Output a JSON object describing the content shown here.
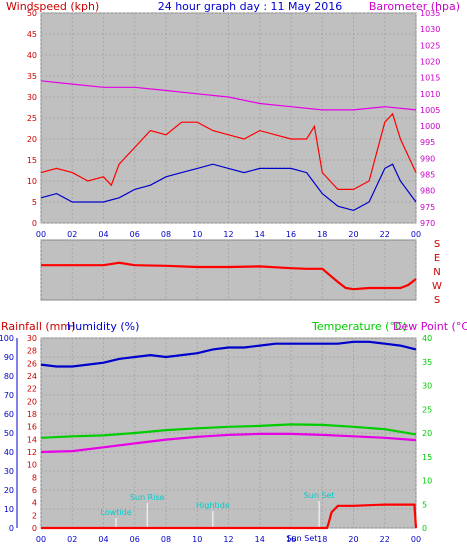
{
  "chart_data": [
    {
      "type": "line",
      "title": "24 hour graph day : 11 May 2016",
      "left_label": "Windspeed (kph)",
      "right_label": "Barometer (hpa)",
      "x_ticks": [
        "00",
        "02",
        "04",
        "06",
        "08",
        "10",
        "12",
        "14",
        "16",
        "18",
        "20",
        "22",
        "00"
      ],
      "xlim": [
        0,
        24
      ],
      "left_ylim": [
        0,
        50
      ],
      "left_ticks": [
        "0",
        "5",
        "10",
        "15",
        "20",
        "25",
        "30",
        "35",
        "40",
        "45",
        "50"
      ],
      "right_ylim": [
        970,
        1035
      ],
      "right_ticks": [
        "970",
        "975",
        "980",
        "985",
        "990",
        "995",
        "1000",
        "1005",
        "1010",
        "1015",
        "1020",
        "1025",
        "1030",
        "1035"
      ],
      "colors": {
        "gust": "#ff0000",
        "wind": "#0000cc",
        "baro": "#e600e6"
      },
      "series": [
        {
          "axis": "left",
          "color": "#ff0000",
          "x": [
            0,
            1,
            2,
            3,
            4,
            4.5,
            5,
            6,
            7,
            8,
            9,
            10,
            11,
            12,
            13,
            14,
            15,
            16,
            17,
            17.5,
            18,
            19,
            20,
            21,
            22,
            22.5,
            23,
            24
          ],
          "values": [
            12,
            13,
            12,
            10,
            11,
            9,
            14,
            18,
            22,
            21,
            24,
            24,
            22,
            21,
            20,
            22,
            21,
            20,
            20,
            23,
            12,
            8,
            8,
            10,
            24,
            26,
            20,
            12
          ]
        },
        {
          "axis": "left",
          "color": "#0000cc",
          "x": [
            0,
            1,
            2,
            3,
            4,
            5,
            6,
            7,
            8,
            9,
            10,
            11,
            12,
            13,
            14,
            15,
            16,
            17,
            18,
            19,
            20,
            21,
            22,
            22.5,
            23,
            24
          ],
          "values": [
            6,
            7,
            5,
            5,
            5,
            6,
            8,
            9,
            11,
            12,
            13,
            14,
            13,
            12,
            13,
            13,
            13,
            12,
            7,
            4,
            3,
            5,
            13,
            14,
            10,
            5
          ]
        },
        {
          "axis": "right",
          "color": "#e600e6",
          "x": [
            0,
            2,
            4,
            6,
            8,
            10,
            12,
            14,
            16,
            18,
            20,
            22,
            24
          ],
          "values": [
            1014,
            1013,
            1012,
            1012,
            1011,
            1010,
            1009,
            1007,
            1006,
            1005,
            1005,
            1006,
            1005
          ]
        }
      ]
    },
    {
      "type": "line",
      "title": "",
      "ylabels": [
        "S",
        "E",
        "N",
        "W",
        "S"
      ],
      "color": "#ff0000",
      "x": [
        0,
        2,
        4,
        5,
        6,
        8,
        10,
        12,
        14,
        16,
        17,
        18,
        19,
        19.5,
        20,
        21,
        22,
        23,
        23.5,
        24
      ],
      "values": [
        0.58,
        0.58,
        0.58,
        0.62,
        0.58,
        0.57,
        0.55,
        0.55,
        0.56,
        0.53,
        0.52,
        0.52,
        0.3,
        0.2,
        0.18,
        0.2,
        0.2,
        0.2,
        0.25,
        0.35
      ]
    },
    {
      "type": "line",
      "title": "",
      "left_label_1": "Rainfall (mm)",
      "left_label_2": "Humidity (%)",
      "right_label_1": "Temperature (°C)",
      "right_label_2": "Dew Point (°C)",
      "x_ticks": [
        "00",
        "02",
        "04",
        "06",
        "08",
        "10",
        "12",
        "14",
        "16",
        "18",
        "20",
        "22",
        "00"
      ],
      "xlim": [
        0,
        24
      ],
      "humidity_ticks": [
        "0",
        "10",
        "20",
        "30",
        "40",
        "50",
        "60",
        "70",
        "80",
        "90",
        "100"
      ],
      "humidity_ylim": [
        0,
        100
      ],
      "rain_ticks": [
        "0",
        "2",
        "4",
        "6",
        "8",
        "10",
        "12",
        "14",
        "16",
        "18",
        "20",
        "22",
        "24",
        "26",
        "28",
        "30"
      ],
      "rain_ylim": [
        0,
        30
      ],
      "temp_ticks": [
        "0",
        "5",
        "10",
        "15",
        "20",
        "25",
        "30",
        "35",
        "40"
      ],
      "temp_ylim": [
        0,
        40
      ],
      "series": [
        {
          "name": "Humidity (%)",
          "scale": "humidity",
          "color": "#0000cc",
          "x": [
            0,
            1,
            2,
            3,
            4,
            5,
            6,
            7,
            8,
            9,
            10,
            11,
            12,
            13,
            14,
            15,
            16,
            17,
            18,
            19,
            20,
            21,
            22,
            23,
            24
          ],
          "values": [
            86,
            85,
            85,
            86,
            87,
            89,
            90,
            91,
            90,
            91,
            92,
            94,
            95,
            95,
            96,
            97,
            97,
            97,
            97,
            97,
            98,
            98,
            97,
            96,
            94
          ]
        },
        {
          "name": "Temperature (°C)",
          "scale": "temp",
          "color": "#00cc00",
          "x": [
            0,
            2,
            4,
            6,
            8,
            10,
            12,
            14,
            16,
            18,
            20,
            22,
            24
          ],
          "values": [
            19.0,
            19.3,
            19.5,
            20.0,
            20.6,
            21.0,
            21.3,
            21.5,
            21.8,
            21.7,
            21.3,
            20.8,
            19.7
          ]
        },
        {
          "name": "Dew Point (°C)",
          "scale": "temp",
          "color": "#e600e6",
          "x": [
            0,
            2,
            4,
            6,
            8,
            10,
            12,
            14,
            16,
            18,
            20,
            22,
            24
          ],
          "values": [
            16.0,
            16.2,
            17.0,
            17.8,
            18.6,
            19.2,
            19.6,
            19.8,
            19.8,
            19.6,
            19.3,
            19.0,
            18.5
          ]
        },
        {
          "name": "Rainfall (mm)",
          "scale": "rain",
          "color": "#ff0000",
          "x": [
            0,
            18.3,
            18.4,
            18.6,
            19,
            20,
            21,
            22,
            23,
            23.9,
            24
          ],
          "values": [
            0,
            0,
            0.7,
            2.5,
            3.5,
            3.5,
            3.6,
            3.7,
            3.7,
            3.7,
            0
          ]
        }
      ],
      "annotations": [
        {
          "label": "Lowtide",
          "x": 4.8
        },
        {
          "label": "Sun Rise",
          "x": 6.8
        },
        {
          "label": "Hightide",
          "x": 11.0
        },
        {
          "label": "Sun Set",
          "x": 17.8
        },
        {
          "label": "Sun Set",
          "x": 16.7
        }
      ]
    }
  ]
}
